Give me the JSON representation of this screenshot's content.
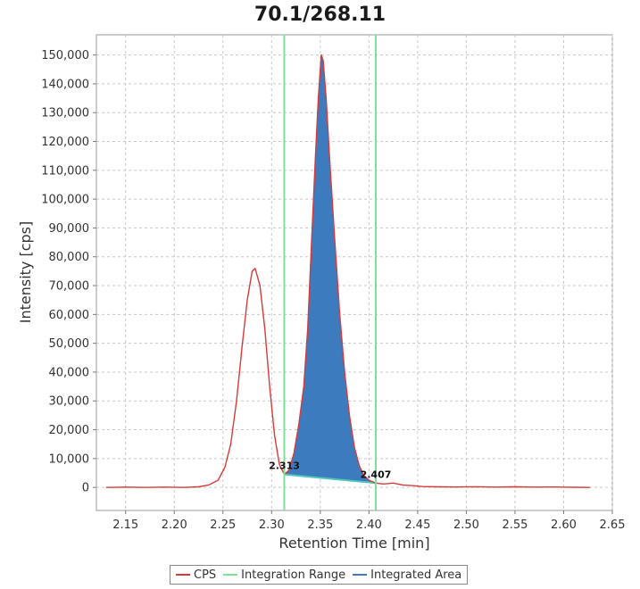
{
  "chart_data": {
    "type": "line",
    "title": "70.1/268.11",
    "xlabel": "Retention Time [min]",
    "ylabel": "Intensity [cps]",
    "xlim": [
      2.12,
      2.65
    ],
    "ylim": [
      -8000,
      157000
    ],
    "xticks": [
      2.15,
      2.2,
      2.25,
      2.3,
      2.35,
      2.4,
      2.45,
      2.5,
      2.55,
      2.6,
      2.65
    ],
    "xtick_labels": [
      "2.15",
      "2.20",
      "2.25",
      "2.30",
      "2.35",
      "2.40",
      "2.45",
      "2.50",
      "2.55",
      "2.60",
      "2.65"
    ],
    "yticks": [
      0,
      10000,
      20000,
      30000,
      40000,
      50000,
      60000,
      70000,
      80000,
      90000,
      100000,
      110000,
      120000,
      130000,
      140000,
      150000
    ],
    "ytick_labels": [
      "0",
      "10,000",
      "20,000",
      "30,000",
      "40,000",
      "50,000",
      "60,000",
      "70,000",
      "80,000",
      "90,000",
      "100,000",
      "110,000",
      "120,000",
      "130,000",
      "140,000",
      "150,000"
    ],
    "grid": true,
    "legend_position": "bottom-center",
    "series": [
      {
        "name": "CPS",
        "color": "#d83a3a",
        "x": [
          2.13,
          2.15,
          2.17,
          2.19,
          2.21,
          2.225,
          2.235,
          2.245,
          2.252,
          2.258,
          2.264,
          2.27,
          2.275,
          2.28,
          2.283,
          2.288,
          2.293,
          2.298,
          2.303,
          2.308,
          2.313,
          2.318,
          2.323,
          2.328,
          2.333,
          2.337,
          2.341,
          2.345,
          2.348,
          2.351,
          2.353,
          2.356,
          2.36,
          2.365,
          2.37,
          2.375,
          2.38,
          2.385,
          2.39,
          2.395,
          2.4,
          2.407,
          2.415,
          2.425,
          2.435,
          2.445,
          2.455,
          2.47,
          2.49,
          2.51,
          2.53,
          2.55,
          2.57,
          2.59,
          2.61,
          2.627
        ],
        "y": [
          0,
          100,
          0,
          100,
          0,
          200,
          800,
          2500,
          7000,
          15000,
          30000,
          50000,
          65000,
          75000,
          76000,
          70000,
          55000,
          35000,
          18000,
          8000,
          4500,
          6000,
          12000,
          22000,
          35000,
          55000,
          85000,
          115000,
          135000,
          150000,
          148000,
          135000,
          112000,
          85000,
          60000,
          40000,
          25000,
          14000,
          7500,
          4000,
          2500,
          1500,
          1200,
          1500,
          800,
          600,
          300,
          200,
          150,
          250,
          100,
          200,
          100,
          150,
          50,
          0
        ]
      },
      {
        "name": "Integration Range",
        "color": "#7fe09a",
        "x": [
          2.313,
          2.407
        ]
      },
      {
        "name": "Integrated Area",
        "color": "#3d7bbf",
        "x_start": 2.313,
        "x_end": 2.407,
        "baseline": [
          4500,
          1500
        ]
      }
    ],
    "annotations": [
      {
        "text": "2.313",
        "x": 2.313,
        "y": 4500
      },
      {
        "text": "2.407",
        "x": 2.407,
        "y": 1500
      }
    ]
  }
}
